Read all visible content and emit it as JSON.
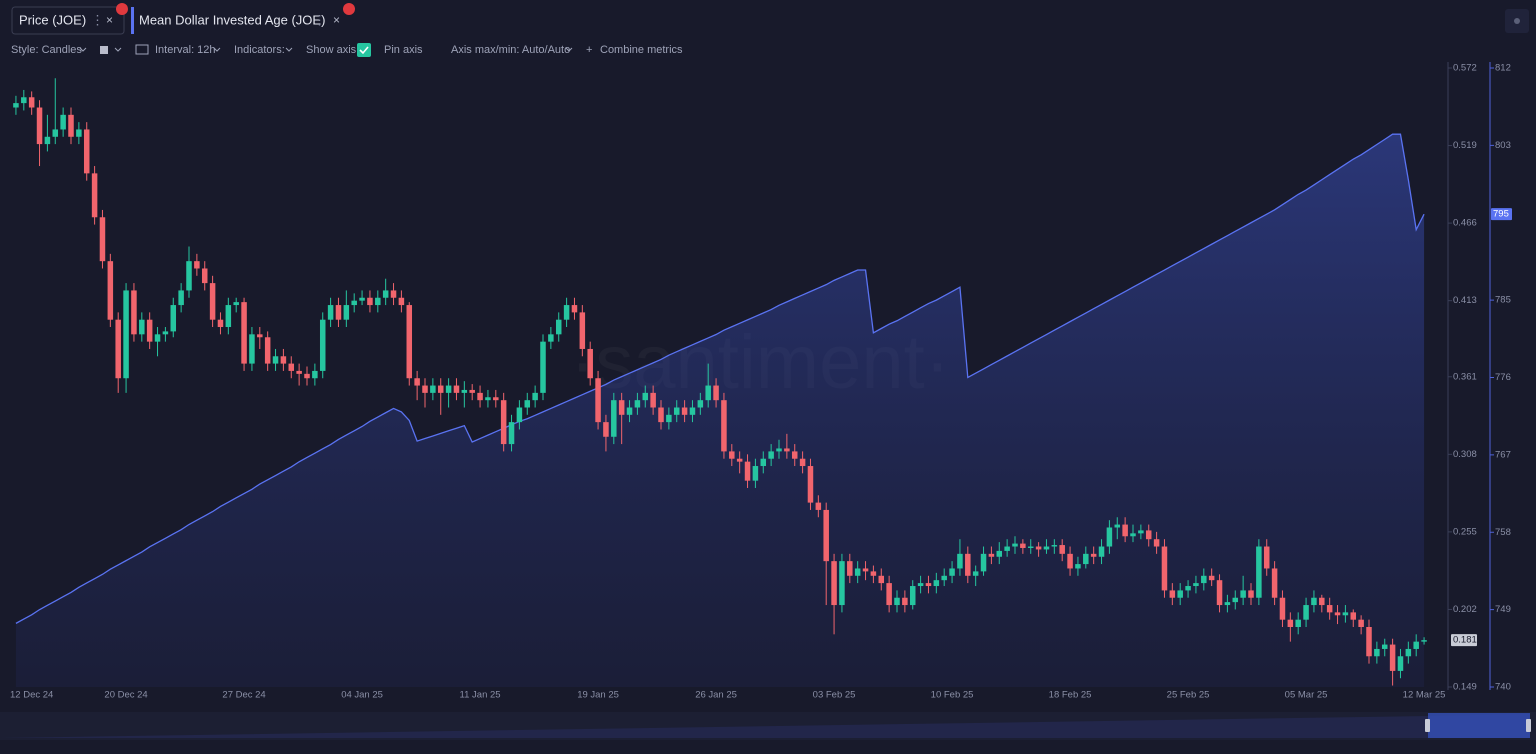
{
  "ui": {
    "toolbar": {
      "style": "Style: Candles",
      "interval": "Interval: 12h",
      "indicators": "Indicators:",
      "show_axis": "Show axis",
      "pin_axis": "Pin axis",
      "axis_maxmin": "Axis max/min: Auto/Auto",
      "combine": "Combine metrics"
    },
    "watermark": "·santiment·"
  },
  "chart_data": {
    "type": "candlestick",
    "grid": false,
    "categories": [
      null,
      null,
      "12 Dec 24",
      null,
      null,
      null,
      null,
      null,
      null,
      null,
      null,
      null,
      null,
      null,
      "20 Dec 24",
      null,
      null,
      null,
      null,
      null,
      null,
      null,
      null,
      null,
      null,
      null,
      null,
      null,
      null,
      "27 Dec 24",
      null,
      null,
      null,
      null,
      null,
      null,
      null,
      null,
      null,
      null,
      null,
      null,
      null,
      null,
      "04 Jan 25",
      null,
      null,
      null,
      null,
      null,
      null,
      null,
      null,
      null,
      null,
      null,
      null,
      null,
      null,
      "11 Jan 25",
      null,
      null,
      null,
      null,
      null,
      null,
      null,
      null,
      null,
      null,
      null,
      null,
      null,
      null,
      "19 Jan 25",
      null,
      null,
      null,
      null,
      null,
      null,
      null,
      null,
      null,
      null,
      null,
      null,
      null,
      null,
      "26 Jan 25",
      null,
      null,
      null,
      null,
      null,
      null,
      null,
      null,
      null,
      null,
      null,
      null,
      null,
      null,
      "03 Feb 25",
      null,
      null,
      null,
      null,
      null,
      null,
      null,
      null,
      null,
      null,
      null,
      null,
      null,
      null,
      "10 Feb 25",
      null,
      null,
      null,
      null,
      null,
      null,
      null,
      null,
      null,
      null,
      null,
      null,
      null,
      null,
      "18 Feb 25",
      null,
      null,
      null,
      null,
      null,
      null,
      null,
      null,
      null,
      null,
      null,
      null,
      null,
      null,
      "25 Feb 25",
      null,
      null,
      null,
      null,
      null,
      null,
      null,
      null,
      null,
      null,
      null,
      null,
      null,
      null,
      "05 Mar 25",
      null,
      null,
      null,
      null,
      null,
      null,
      null,
      null,
      null,
      null,
      null,
      null,
      null,
      null,
      "12 Mar 25"
    ],
    "ylim": [
      0.149,
      0.572
    ],
    "yticks": [
      0.149,
      0.202,
      0.255,
      0.308,
      0.361,
      0.413,
      0.466,
      0.519,
      0.572
    ],
    "y2lim": [
      740,
      812
    ],
    "y2ticks": [
      740,
      749,
      758,
      767,
      776,
      785,
      803,
      812
    ],
    "series": [
      {
        "name": "Price (JOE)",
        "up_color": "#26c6a0",
        "down_color": "#f1656d",
        "open": [
          0.545,
          0.548,
          0.552,
          0.545,
          0.52,
          0.525,
          0.53,
          0.54,
          0.525,
          0.53,
          0.5,
          0.47,
          0.44,
          0.4,
          0.36,
          0.42,
          0.39,
          0.4,
          0.385,
          0.39,
          0.392,
          0.41,
          0.42,
          0.44,
          0.435,
          0.425,
          0.4,
          0.395,
          0.41,
          0.412,
          0.37,
          0.39,
          0.388,
          0.37,
          0.375,
          0.37,
          0.365,
          0.363,
          0.36,
          0.365,
          0.4,
          0.41,
          0.4,
          0.41,
          0.413,
          0.415,
          0.41,
          0.415,
          0.42,
          0.415,
          0.41,
          0.36,
          0.355,
          0.35,
          0.355,
          0.35,
          0.355,
          0.35,
          0.352,
          0.35,
          0.345,
          0.347,
          0.345,
          0.315,
          0.33,
          0.34,
          0.345,
          0.35,
          0.385,
          0.39,
          0.4,
          0.41,
          0.405,
          0.38,
          0.36,
          0.33,
          0.32,
          0.345,
          0.335,
          0.34,
          0.345,
          0.35,
          0.34,
          0.33,
          0.335,
          0.34,
          0.335,
          0.34,
          0.345,
          0.355,
          0.345,
          0.31,
          0.305,
          0.303,
          0.29,
          0.3,
          0.305,
          0.31,
          0.312,
          0.31,
          0.305,
          0.3,
          0.275,
          0.27,
          0.235,
          0.205,
          0.235,
          0.225,
          0.23,
          0.228,
          0.225,
          0.22,
          0.205,
          0.21,
          0.205,
          0.218,
          0.22,
          0.218,
          0.222,
          0.225,
          0.23,
          0.24,
          0.225,
          0.228,
          0.24,
          0.238,
          0.242,
          0.245,
          0.247,
          0.244,
          0.245,
          0.243,
          0.245,
          0.246,
          0.24,
          0.23,
          0.233,
          0.24,
          0.238,
          0.245,
          0.258,
          0.26,
          0.252,
          0.254,
          0.256,
          0.25,
          0.245,
          0.215,
          0.21,
          0.215,
          0.218,
          0.22,
          0.225,
          0.222,
          0.205,
          0.207,
          0.21,
          0.215,
          0.21,
          0.245,
          0.23,
          0.21,
          0.195,
          0.19,
          0.195,
          0.205,
          0.21,
          0.205,
          0.2,
          0.198,
          0.2,
          0.195,
          0.19,
          0.17,
          0.175,
          0.178,
          0.16,
          0.17,
          0.175,
          0.18
        ],
        "high": [
          0.553,
          0.557,
          0.556,
          0.55,
          0.54,
          0.565,
          0.545,
          0.545,
          0.535,
          0.535,
          0.505,
          0.475,
          0.445,
          0.405,
          0.425,
          0.425,
          0.405,
          0.405,
          0.395,
          0.395,
          0.415,
          0.425,
          0.45,
          0.445,
          0.44,
          0.43,
          0.405,
          0.415,
          0.415,
          0.415,
          0.395,
          0.395,
          0.392,
          0.38,
          0.38,
          0.375,
          0.37,
          0.368,
          0.37,
          0.405,
          0.415,
          0.415,
          0.42,
          0.418,
          0.42,
          0.42,
          0.42,
          0.428,
          0.425,
          0.42,
          0.412,
          0.365,
          0.36,
          0.36,
          0.36,
          0.36,
          0.36,
          0.358,
          0.356,
          0.355,
          0.352,
          0.352,
          0.35,
          0.335,
          0.345,
          0.35,
          0.355,
          0.39,
          0.395,
          0.405,
          0.415,
          0.415,
          0.41,
          0.385,
          0.365,
          0.335,
          0.35,
          0.35,
          0.345,
          0.35,
          0.355,
          0.355,
          0.345,
          0.34,
          0.345,
          0.345,
          0.345,
          0.35,
          0.37,
          0.36,
          0.35,
          0.315,
          0.31,
          0.308,
          0.305,
          0.31,
          0.315,
          0.318,
          0.322,
          0.315,
          0.31,
          0.305,
          0.28,
          0.275,
          0.24,
          0.24,
          0.24,
          0.235,
          0.235,
          0.232,
          0.23,
          0.225,
          0.215,
          0.215,
          0.222,
          0.225,
          0.225,
          0.227,
          0.23,
          0.235,
          0.25,
          0.245,
          0.232,
          0.245,
          0.245,
          0.248,
          0.25,
          0.252,
          0.25,
          0.25,
          0.248,
          0.25,
          0.25,
          0.25,
          0.245,
          0.238,
          0.245,
          0.245,
          0.25,
          0.263,
          0.265,
          0.265,
          0.26,
          0.26,
          0.26,
          0.255,
          0.25,
          0.22,
          0.22,
          0.222,
          0.225,
          0.23,
          0.23,
          0.226,
          0.212,
          0.215,
          0.225,
          0.22,
          0.25,
          0.25,
          0.235,
          0.215,
          0.2,
          0.2,
          0.21,
          0.215,
          0.212,
          0.21,
          0.205,
          0.205,
          0.202,
          0.198,
          0.195,
          0.18,
          0.182,
          0.182,
          0.175,
          0.18,
          0.185,
          0.183
        ],
        "low": [
          0.54,
          0.543,
          0.54,
          0.505,
          0.515,
          0.52,
          0.525,
          0.52,
          0.52,
          0.495,
          0.465,
          0.435,
          0.395,
          0.35,
          0.35,
          0.385,
          0.385,
          0.38,
          0.375,
          0.385,
          0.388,
          0.405,
          0.415,
          0.43,
          0.42,
          0.395,
          0.39,
          0.39,
          0.405,
          0.365,
          0.365,
          0.38,
          0.365,
          0.365,
          0.365,
          0.36,
          0.355,
          0.355,
          0.355,
          0.36,
          0.395,
          0.395,
          0.395,
          0.405,
          0.41,
          0.405,
          0.405,
          0.41,
          0.41,
          0.405,
          0.355,
          0.345,
          0.34,
          0.345,
          0.335,
          0.34,
          0.345,
          0.34,
          0.345,
          0.34,
          0.34,
          0.34,
          0.31,
          0.31,
          0.325,
          0.335,
          0.34,
          0.345,
          0.38,
          0.385,
          0.395,
          0.4,
          0.375,
          0.355,
          0.325,
          0.31,
          0.315,
          0.315,
          0.33,
          0.335,
          0.34,
          0.335,
          0.325,
          0.325,
          0.33,
          0.33,
          0.33,
          0.335,
          0.34,
          0.34,
          0.305,
          0.3,
          0.295,
          0.285,
          0.285,
          0.295,
          0.3,
          0.305,
          0.305,
          0.3,
          0.295,
          0.27,
          0.265,
          0.205,
          0.185,
          0.2,
          0.22,
          0.22,
          0.222,
          0.22,
          0.215,
          0.2,
          0.2,
          0.2,
          0.202,
          0.213,
          0.213,
          0.213,
          0.218,
          0.22,
          0.225,
          0.22,
          0.218,
          0.225,
          0.233,
          0.233,
          0.238,
          0.24,
          0.24,
          0.24,
          0.238,
          0.24,
          0.24,
          0.235,
          0.225,
          0.225,
          0.23,
          0.233,
          0.233,
          0.24,
          0.25,
          0.248,
          0.248,
          0.25,
          0.245,
          0.24,
          0.21,
          0.205,
          0.205,
          0.21,
          0.213,
          0.215,
          0.218,
          0.2,
          0.2,
          0.202,
          0.205,
          0.205,
          0.205,
          0.225,
          0.205,
          0.19,
          0.18,
          0.185,
          0.19,
          0.2,
          0.2,
          0.195,
          0.192,
          0.193,
          0.19,
          0.185,
          0.165,
          0.165,
          0.17,
          0.15,
          0.155,
          0.165,
          0.17,
          0.178
        ],
        "close": [
          0.548,
          0.552,
          0.545,
          0.52,
          0.525,
          0.53,
          0.54,
          0.525,
          0.53,
          0.5,
          0.47,
          0.44,
          0.4,
          0.36,
          0.42,
          0.39,
          0.4,
          0.385,
          0.39,
          0.392,
          0.41,
          0.42,
          0.44,
          0.435,
          0.425,
          0.4,
          0.395,
          0.41,
          0.412,
          0.37,
          0.39,
          0.388,
          0.37,
          0.375,
          0.37,
          0.365,
          0.363,
          0.36,
          0.365,
          0.4,
          0.41,
          0.4,
          0.41,
          0.413,
          0.415,
          0.41,
          0.415,
          0.42,
          0.415,
          0.41,
          0.36,
          0.355,
          0.35,
          0.355,
          0.35,
          0.355,
          0.35,
          0.352,
          0.35,
          0.345,
          0.347,
          0.345,
          0.315,
          0.33,
          0.34,
          0.345,
          0.35,
          0.385,
          0.39,
          0.4,
          0.41,
          0.405,
          0.38,
          0.36,
          0.33,
          0.32,
          0.345,
          0.335,
          0.34,
          0.345,
          0.35,
          0.34,
          0.33,
          0.335,
          0.34,
          0.335,
          0.34,
          0.345,
          0.355,
          0.345,
          0.31,
          0.305,
          0.303,
          0.29,
          0.3,
          0.305,
          0.31,
          0.312,
          0.31,
          0.305,
          0.3,
          0.275,
          0.27,
          0.235,
          0.205,
          0.235,
          0.225,
          0.23,
          0.228,
          0.225,
          0.22,
          0.205,
          0.21,
          0.205,
          0.218,
          0.22,
          0.218,
          0.222,
          0.225,
          0.23,
          0.24,
          0.225,
          0.228,
          0.24,
          0.238,
          0.242,
          0.245,
          0.247,
          0.244,
          0.245,
          0.243,
          0.245,
          0.246,
          0.24,
          0.23,
          0.233,
          0.24,
          0.238,
          0.245,
          0.258,
          0.26,
          0.252,
          0.254,
          0.256,
          0.25,
          0.245,
          0.215,
          0.21,
          0.215,
          0.218,
          0.22,
          0.225,
          0.222,
          0.205,
          0.207,
          0.21,
          0.215,
          0.21,
          0.245,
          0.23,
          0.21,
          0.195,
          0.19,
          0.195,
          0.205,
          0.21,
          0.205,
          0.2,
          0.198,
          0.2,
          0.195,
          0.19,
          0.17,
          0.175,
          0.178,
          0.16,
          0.17,
          0.175,
          0.18,
          0.181
        ]
      },
      {
        "name": "Mean Dollar Invested Age (JOE)",
        "axis": "y2",
        "color": "#5a73f2",
        "values": [
          747.4,
          747.9,
          748.4,
          749.0,
          749.5,
          750.0,
          750.5,
          751.0,
          751.6,
          752.1,
          752.6,
          753.1,
          753.7,
          754.2,
          754.7,
          755.2,
          755.7,
          756.3,
          756.8,
          757.3,
          757.8,
          758.3,
          758.9,
          759.4,
          759.9,
          760.4,
          761.0,
          761.5,
          762.0,
          762.5,
          763.0,
          763.6,
          764.1,
          764.6,
          765.1,
          765.6,
          766.2,
          766.7,
          767.2,
          767.7,
          768.2,
          768.8,
          769.3,
          769.8,
          770.3,
          770.9,
          771.4,
          771.9,
          772.4,
          772.0,
          771.0,
          768.6,
          768.9,
          769.2,
          769.5,
          769.8,
          770.1,
          770.4,
          768.5,
          768.9,
          769.3,
          769.7,
          770.1,
          770.5,
          770.9,
          771.2,
          771.6,
          772.0,
          772.4,
          772.8,
          773.2,
          773.6,
          774.0,
          774.4,
          774.8,
          775.2,
          775.7,
          776.1,
          776.5,
          776.9,
          777.3,
          777.7,
          778.1,
          778.6,
          779.0,
          779.4,
          779.8,
          780.2,
          780.6,
          781.0,
          781.5,
          781.9,
          782.3,
          782.7,
          783.1,
          783.5,
          783.9,
          784.4,
          784.8,
          785.2,
          785.6,
          786.0,
          786.4,
          786.8,
          787.3,
          787.7,
          788.1,
          788.5,
          788.5,
          781.2,
          781.7,
          782.2,
          782.6,
          783.1,
          783.6,
          784.1,
          784.6,
          785.0,
          785.5,
          786.0,
          786.5,
          776.0,
          776.5,
          777.0,
          777.5,
          778.0,
          778.5,
          779.0,
          779.5,
          780.0,
          780.5,
          781.0,
          781.5,
          782.0,
          782.5,
          783.0,
          783.5,
          784.0,
          784.5,
          785.0,
          785.5,
          786.0,
          786.5,
          787.0,
          787.5,
          788.0,
          788.5,
          789.0,
          789.5,
          790.0,
          790.5,
          791.0,
          791.5,
          792.0,
          792.5,
          793.0,
          793.5,
          794.0,
          794.5,
          795.0,
          795.5,
          796.1,
          796.7,
          797.3,
          797.8,
          798.4,
          799.0,
          799.6,
          800.2,
          800.8,
          801.4,
          801.9,
          802.5,
          803.1,
          803.7,
          804.3,
          804.3,
          799.0,
          793.2,
          795
        ]
      }
    ]
  }
}
